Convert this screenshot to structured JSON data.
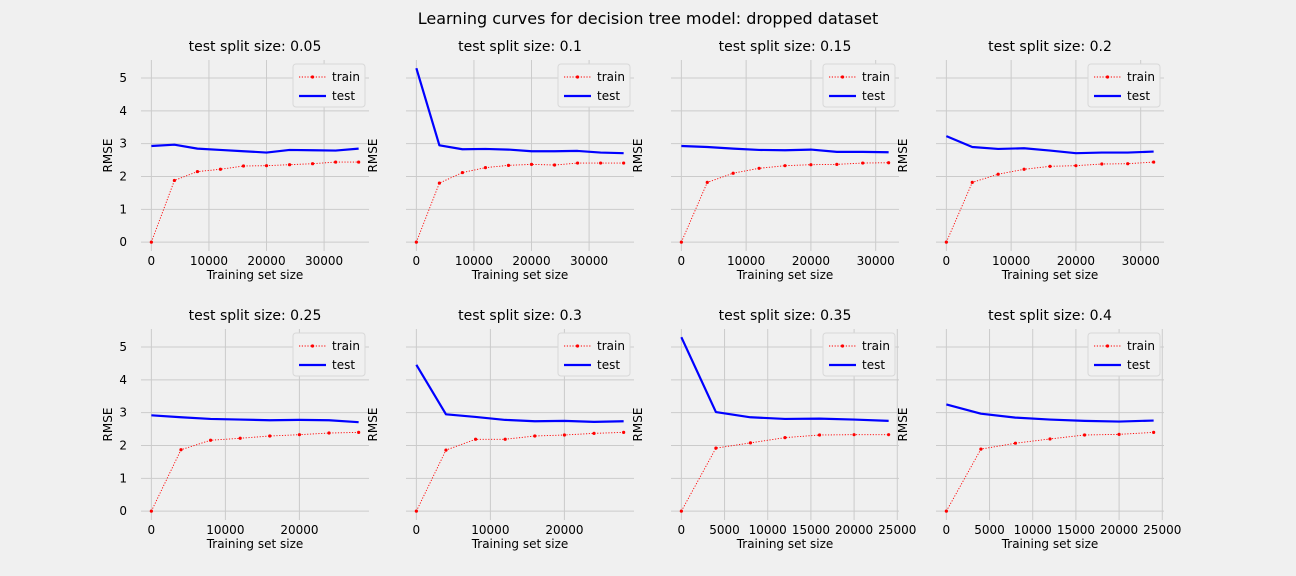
{
  "figure": {
    "title": "Learning curves for decision tree model: dropped dataset"
  },
  "colors": {
    "background": "#f0f0f0",
    "grid": "#cbcbcb",
    "train": "#ff0000",
    "test": "#0000ff"
  },
  "chart_data": [
    {
      "type": "line",
      "title": "test split size: 0.05",
      "xlabel": "Training set size",
      "ylabel": "RMSE",
      "xlim": [
        -1800,
        37800
      ],
      "ylim": [
        -0.27,
        5.55
      ],
      "xticks": [
        0,
        10000,
        20000,
        30000
      ],
      "yticks": [
        0,
        1,
        2,
        3,
        4,
        5
      ],
      "grid": true,
      "legend": "upper right",
      "series": [
        {
          "name": "train",
          "style": "dotted-markers",
          "x": [
            0,
            4000,
            8000,
            12000,
            16000,
            20000,
            24000,
            28000,
            32000,
            36000
          ],
          "y": [
            0.0,
            1.88,
            2.15,
            2.22,
            2.32,
            2.33,
            2.36,
            2.39,
            2.44,
            2.44
          ]
        },
        {
          "name": "test",
          "style": "solid",
          "x": [
            0,
            4000,
            8000,
            12000,
            16000,
            20000,
            24000,
            28000,
            32000,
            36000
          ],
          "y": [
            2.93,
            2.97,
            2.85,
            2.81,
            2.77,
            2.73,
            2.81,
            2.8,
            2.79,
            2.85
          ]
        }
      ]
    },
    {
      "type": "line",
      "title": "test split size: 0.1",
      "xlabel": "Training set size",
      "ylabel": "RMSE",
      "xlim": [
        -1800,
        37800
      ],
      "ylim": [
        -0.27,
        5.55
      ],
      "xticks": [
        0,
        10000,
        20000,
        30000
      ],
      "yticks": [
        0,
        1,
        2,
        3,
        4,
        5
      ],
      "grid": true,
      "legend": "upper right",
      "series": [
        {
          "name": "train",
          "style": "dotted-markers",
          "x": [
            0,
            4000,
            8000,
            12000,
            16000,
            20000,
            24000,
            28000,
            32000,
            36000
          ],
          "y": [
            0.0,
            1.8,
            2.12,
            2.27,
            2.34,
            2.37,
            2.35,
            2.41,
            2.41,
            2.41
          ]
        },
        {
          "name": "test",
          "style": "solid",
          "x": [
            0,
            4000,
            8000,
            12000,
            16000,
            20000,
            24000,
            28000,
            32000,
            36000
          ],
          "y": [
            5.3,
            2.95,
            2.83,
            2.84,
            2.82,
            2.77,
            2.77,
            2.78,
            2.73,
            2.71
          ]
        }
      ]
    },
    {
      "type": "line",
      "title": "test split size: 0.15",
      "xlabel": "Training set size",
      "ylabel": "RMSE",
      "xlim": [
        -1600,
        33600
      ],
      "ylim": [
        -0.27,
        5.55
      ],
      "xticks": [
        0,
        10000,
        20000,
        30000
      ],
      "yticks": [
        0,
        1,
        2,
        3,
        4,
        5
      ],
      "grid": true,
      "legend": "upper right",
      "series": [
        {
          "name": "train",
          "style": "dotted-markers",
          "x": [
            0,
            4000,
            8000,
            12000,
            16000,
            20000,
            24000,
            28000,
            32000
          ],
          "y": [
            0.0,
            1.82,
            2.1,
            2.25,
            2.33,
            2.36,
            2.37,
            2.41,
            2.42
          ]
        },
        {
          "name": "test",
          "style": "solid",
          "x": [
            0,
            4000,
            8000,
            12000,
            16000,
            20000,
            24000,
            28000,
            32000
          ],
          "y": [
            2.93,
            2.9,
            2.85,
            2.81,
            2.8,
            2.82,
            2.75,
            2.75,
            2.74
          ]
        }
      ]
    },
    {
      "type": "line",
      "title": "test split size: 0.2",
      "xlabel": "Training set size",
      "ylabel": "RMSE",
      "xlim": [
        -1600,
        33600
      ],
      "ylim": [
        -0.27,
        5.55
      ],
      "xticks": [
        0,
        10000,
        20000,
        30000
      ],
      "yticks": [
        0,
        1,
        2,
        3,
        4,
        5
      ],
      "grid": true,
      "legend": "upper right",
      "series": [
        {
          "name": "train",
          "style": "dotted-markers",
          "x": [
            0,
            4000,
            8000,
            12000,
            16000,
            20000,
            24000,
            28000,
            32000
          ],
          "y": [
            0.0,
            1.82,
            2.07,
            2.22,
            2.31,
            2.33,
            2.38,
            2.39,
            2.44
          ]
        },
        {
          "name": "test",
          "style": "solid",
          "x": [
            0,
            4000,
            8000,
            12000,
            16000,
            20000,
            24000,
            28000,
            32000
          ],
          "y": [
            3.23,
            2.9,
            2.84,
            2.86,
            2.79,
            2.71,
            2.73,
            2.73,
            2.76
          ]
        }
      ]
    },
    {
      "type": "line",
      "title": "test split size: 0.25",
      "xlabel": "Training set size",
      "ylabel": "RMSE",
      "xlim": [
        -1400,
        29400
      ],
      "ylim": [
        -0.27,
        5.55
      ],
      "xticks": [
        0,
        10000,
        20000
      ],
      "yticks": [
        0,
        1,
        2,
        3,
        4,
        5
      ],
      "grid": true,
      "legend": "upper right",
      "series": [
        {
          "name": "train",
          "style": "dotted-markers",
          "x": [
            0,
            4000,
            8000,
            12000,
            16000,
            20000,
            24000,
            28000
          ],
          "y": [
            0.0,
            1.87,
            2.16,
            2.22,
            2.29,
            2.33,
            2.38,
            2.4
          ]
        },
        {
          "name": "test",
          "style": "solid",
          "x": [
            0,
            4000,
            8000,
            12000,
            16000,
            20000,
            24000,
            28000
          ],
          "y": [
            2.92,
            2.86,
            2.81,
            2.79,
            2.77,
            2.78,
            2.77,
            2.71
          ]
        }
      ]
    },
    {
      "type": "line",
      "title": "test split size: 0.3",
      "xlabel": "Training set size",
      "ylabel": "RMSE",
      "xlim": [
        -1400,
        29400
      ],
      "ylim": [
        -0.27,
        5.55
      ],
      "xticks": [
        0,
        10000,
        20000
      ],
      "yticks": [
        0,
        1,
        2,
        3,
        4,
        5
      ],
      "grid": true,
      "legend": "upper right",
      "series": [
        {
          "name": "train",
          "style": "dotted-markers",
          "x": [
            0,
            4000,
            8000,
            12000,
            16000,
            20000,
            24000,
            28000
          ],
          "y": [
            0.0,
            1.86,
            2.19,
            2.19,
            2.29,
            2.32,
            2.37,
            2.4
          ]
        },
        {
          "name": "test",
          "style": "solid",
          "x": [
            0,
            4000,
            8000,
            12000,
            16000,
            20000,
            24000,
            28000
          ],
          "y": [
            4.46,
            2.95,
            2.87,
            2.78,
            2.74,
            2.75,
            2.72,
            2.74
          ]
        }
      ]
    },
    {
      "type": "line",
      "title": "test split size: 0.35",
      "xlabel": "Training set size",
      "ylabel": "RMSE",
      "xlim": [
        -1200,
        25200
      ],
      "ylim": [
        -0.27,
        5.55
      ],
      "xticks": [
        0,
        5000,
        10000,
        15000,
        20000,
        25000
      ],
      "yticks": [
        0,
        1,
        2,
        3,
        4,
        5
      ],
      "grid": true,
      "legend": "upper right",
      "series": [
        {
          "name": "train",
          "style": "dotted-markers",
          "x": [
            0,
            4000,
            8000,
            12000,
            16000,
            20000,
            24000
          ],
          "y": [
            0.0,
            1.92,
            2.08,
            2.24,
            2.32,
            2.33,
            2.33
          ]
        },
        {
          "name": "test",
          "style": "solid",
          "x": [
            0,
            4000,
            8000,
            12000,
            16000,
            20000,
            24000
          ],
          "y": [
            5.3,
            3.02,
            2.86,
            2.81,
            2.82,
            2.79,
            2.75
          ]
        }
      ]
    },
    {
      "type": "line",
      "title": "test split size: 0.4",
      "xlabel": "Training set size",
      "ylabel": "RMSE",
      "xlim": [
        -1200,
        25200
      ],
      "ylim": [
        -0.27,
        5.55
      ],
      "xticks": [
        0,
        5000,
        10000,
        15000,
        20000,
        25000
      ],
      "yticks": [
        0,
        1,
        2,
        3,
        4,
        5
      ],
      "grid": true,
      "legend": "upper right",
      "series": [
        {
          "name": "train",
          "style": "dotted-markers",
          "x": [
            0,
            4000,
            8000,
            12000,
            16000,
            20000,
            24000
          ],
          "y": [
            0.0,
            1.89,
            2.07,
            2.2,
            2.32,
            2.34,
            2.4
          ]
        },
        {
          "name": "test",
          "style": "solid",
          "x": [
            0,
            4000,
            8000,
            12000,
            16000,
            20000,
            24000
          ],
          "y": [
            3.25,
            2.97,
            2.85,
            2.79,
            2.75,
            2.73,
            2.76
          ]
        }
      ]
    }
  ]
}
